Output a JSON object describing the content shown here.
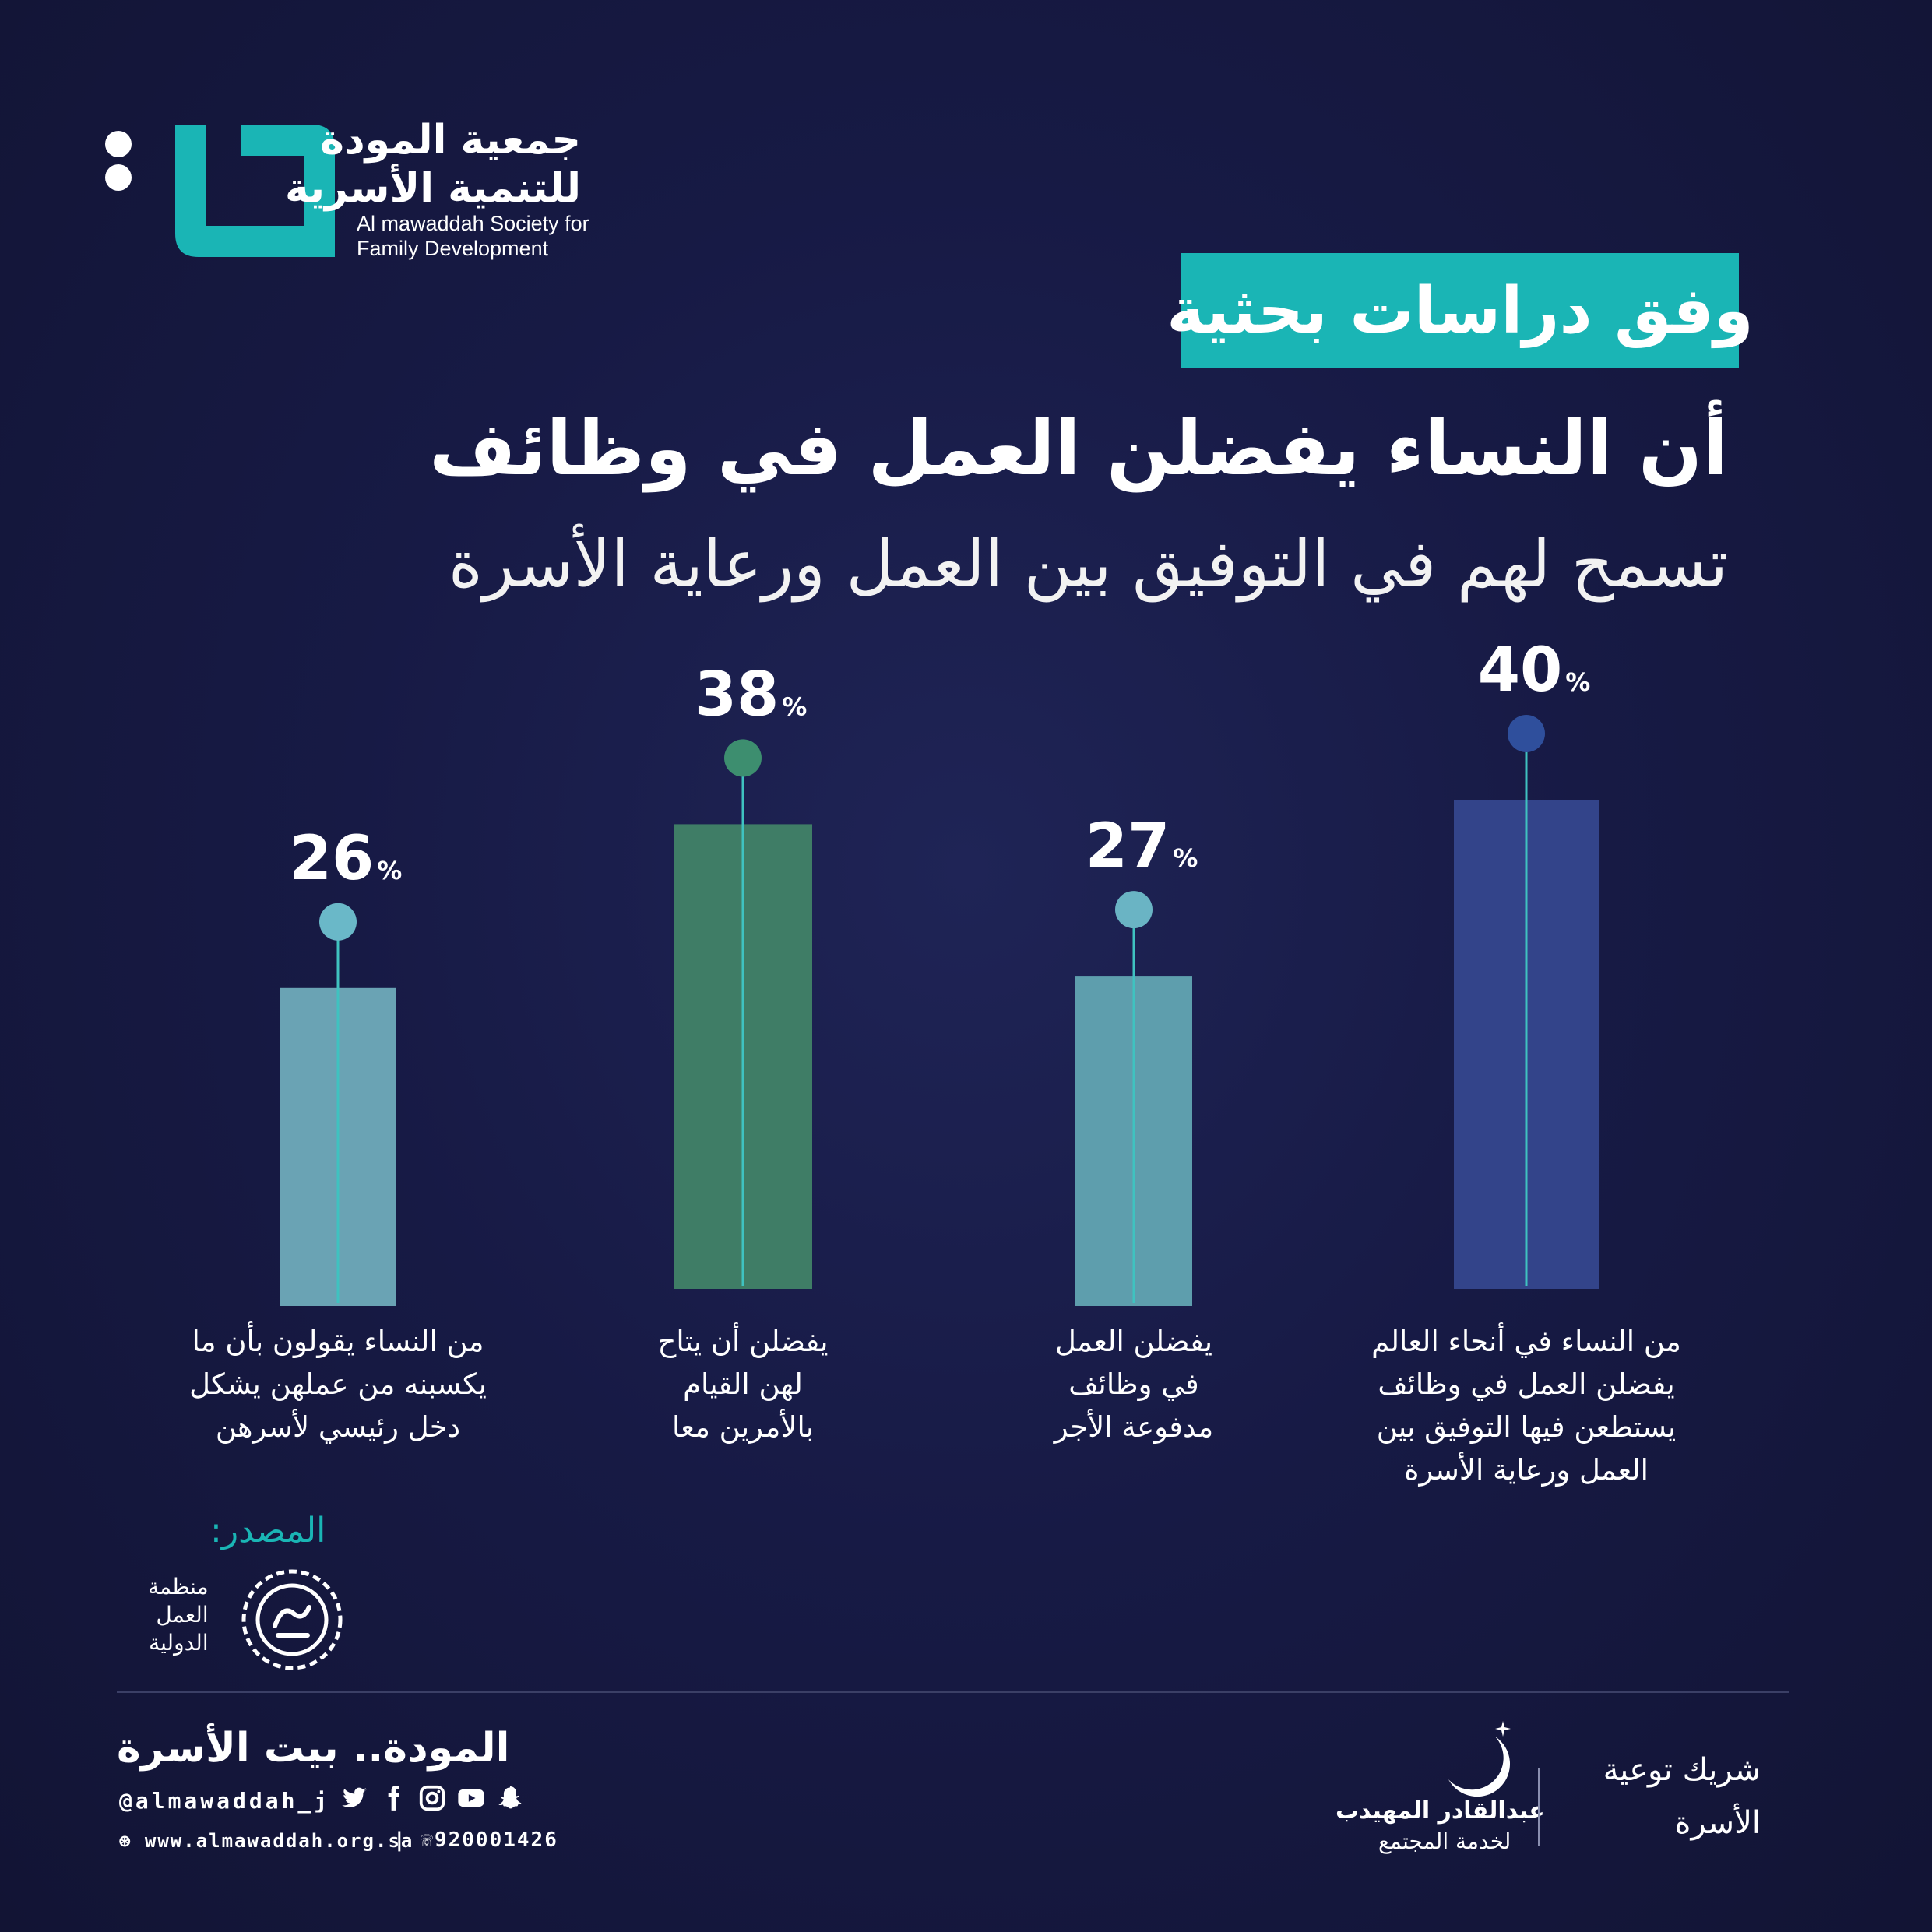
{
  "org": {
    "name_ar_line1": "جمعية المودة",
    "name_ar_line2": "للتنمية الأسرية",
    "name_en_line1": "Al mawaddah Society for",
    "name_en_line2": "Family Development"
  },
  "badge": "وفق دراسات بحثية",
  "headline": "أن النساء يفضلن العمل في وظائف",
  "subheadline": "تسمح لهم في التوفيق بين العمل ورعاية الأسرة",
  "colors": {
    "teal": "#1ab5b5",
    "bar_blue": "#33448a",
    "bar_teal": "#5e9ead",
    "bar_green": "#3f7d66",
    "bar_lightteal": "#6aa3b4",
    "line": "#3fc2c0"
  },
  "chart_data": {
    "type": "bar",
    "unit": "%",
    "categories": [
      "من النساء في أنحاء العالم يفضلن العمل في وظائف يستطعن فيها التوفيق بين العمل ورعاية الأسرة",
      "يفضلن العمل في وظائف مدفوعة الأجر",
      "يفضلن أن يتاح لهن القيام بالأمرين معا",
      "من النساء يقولون بأن ما يكسبنه من عملهن يشكل دخل رئيسي لأسرهن"
    ],
    "values": [
      40,
      27,
      38,
      26
    ],
    "value_labels": [
      "40",
      "27",
      "38",
      "26"
    ],
    "bar_colors": [
      "#33448a",
      "#5e9ead",
      "#3f7d66",
      "#6aa3b4"
    ],
    "dot_colors": [
      "#2f4f9c",
      "#6ab4c4",
      "#3d8e6f",
      "#6ab8c8"
    ]
  },
  "captions": [
    [
      "من النساء في أنحاء العالم",
      "يفضلن العمل في وظائف",
      "يستطعن فيها التوفيق بين",
      "العمل ورعاية الأسرة"
    ],
    [
      "يفضلن العمل",
      "في وظائف",
      "مدفوعة الأجر"
    ],
    [
      "يفضلن أن يتاح",
      "لهن القيام",
      "بالأمرين معا"
    ],
    [
      "من النساء يقولون بأن ما",
      "يكسبنه من عملهن يشكل",
      "دخل رئيسي لأسرهن"
    ]
  ],
  "source": {
    "label": "المصدر:",
    "org_line1": "منظمة",
    "org_line2": "العمل",
    "org_line3": "الدولية"
  },
  "footer": {
    "slogan": "المودة.. بيت الأسرة",
    "handle": "@almawaddah_j",
    "website": "www.almawaddah.org.sa",
    "phone": "920001426",
    "social_icons": [
      "snapchat-icon",
      "youtube-icon",
      "instagram-icon",
      "facebook-icon",
      "twitter-icon"
    ],
    "partner_name": "عبدالقادر المهيدب",
    "partner_sub": "لخدمة المجتمع",
    "partner_title_line1": "شريك توعية",
    "partner_title_line2": "الأسرة"
  }
}
